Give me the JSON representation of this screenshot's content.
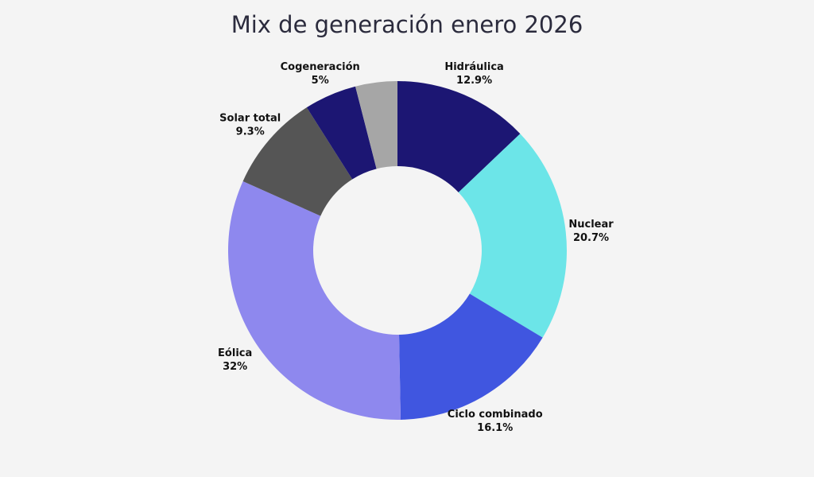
{
  "chart_data": {
    "type": "pie",
    "variant": "donut",
    "title": "Mix de generación enero 2026",
    "slices": [
      {
        "label": "Hidráulica",
        "value": 12.9,
        "value_label": "12.9%",
        "color": "#1c1673"
      },
      {
        "label": "Nuclear",
        "value": 20.7,
        "value_label": "20.7%",
        "color": "#6ce5e8"
      },
      {
        "label": "Ciclo combinado",
        "value": 16.1,
        "value_label": "16.1%",
        "color": "#4056e0"
      },
      {
        "label": "Eólica",
        "value": 32,
        "value_label": "32%",
        "color": "#8e88ee"
      },
      {
        "label": "Solar total",
        "value": 9.3,
        "value_label": "9.3%",
        "color": "#555555"
      },
      {
        "label": "Cogeneración",
        "value": 5,
        "value_label": "5%",
        "color": "#1c1673"
      },
      {
        "label": "",
        "value": 4,
        "value_label": "",
        "color": "#a6a6a6"
      }
    ],
    "legend": "none",
    "start": "top",
    "direction": "clockwise"
  }
}
